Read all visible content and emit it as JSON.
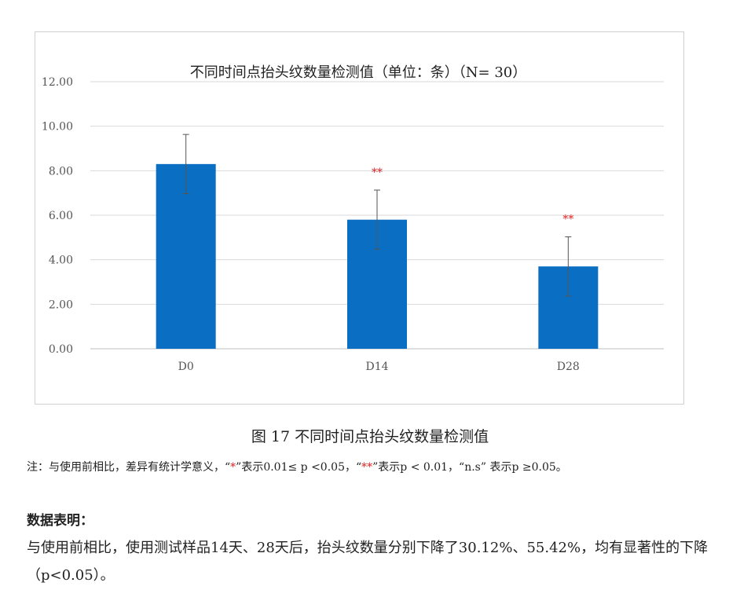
{
  "chart_data": {
    "type": "bar",
    "title": "不同时间点抬头纹数量检测值（单位：条）（N= 30）",
    "categories": [
      "D0",
      "D14",
      "D28"
    ],
    "values": [
      8.3,
      5.8,
      3.7
    ],
    "error": [
      1.33,
      1.33,
      1.33
    ],
    "significance": [
      "",
      "**",
      "**"
    ],
    "ylim": [
      0,
      12
    ],
    "yticks": [
      "0.00",
      "2.00",
      "4.00",
      "6.00",
      "8.00",
      "10.00",
      "12.00"
    ],
    "bar_color": "#0a6fc2",
    "significance_color": "#e02020",
    "grid": true
  },
  "caption": "图 17 不同时间点抬头纹数量检测值",
  "note": {
    "p1": "注：与使用前相比，差异有统计学意义，“",
    "p2": "*",
    "p3": "”表示0.01≤ p <0.05，“",
    "p4": "**",
    "p5": "”表示p < 0.01，“n.s” 表示p ≥0.05。"
  },
  "section": {
    "heading": "数据表明：",
    "body": "与使用前相比，使用测试样品14天、28天后，抬头纹数量分别下降了30.12%、55.42%，均有显著性的下降（p<0.05）。"
  }
}
